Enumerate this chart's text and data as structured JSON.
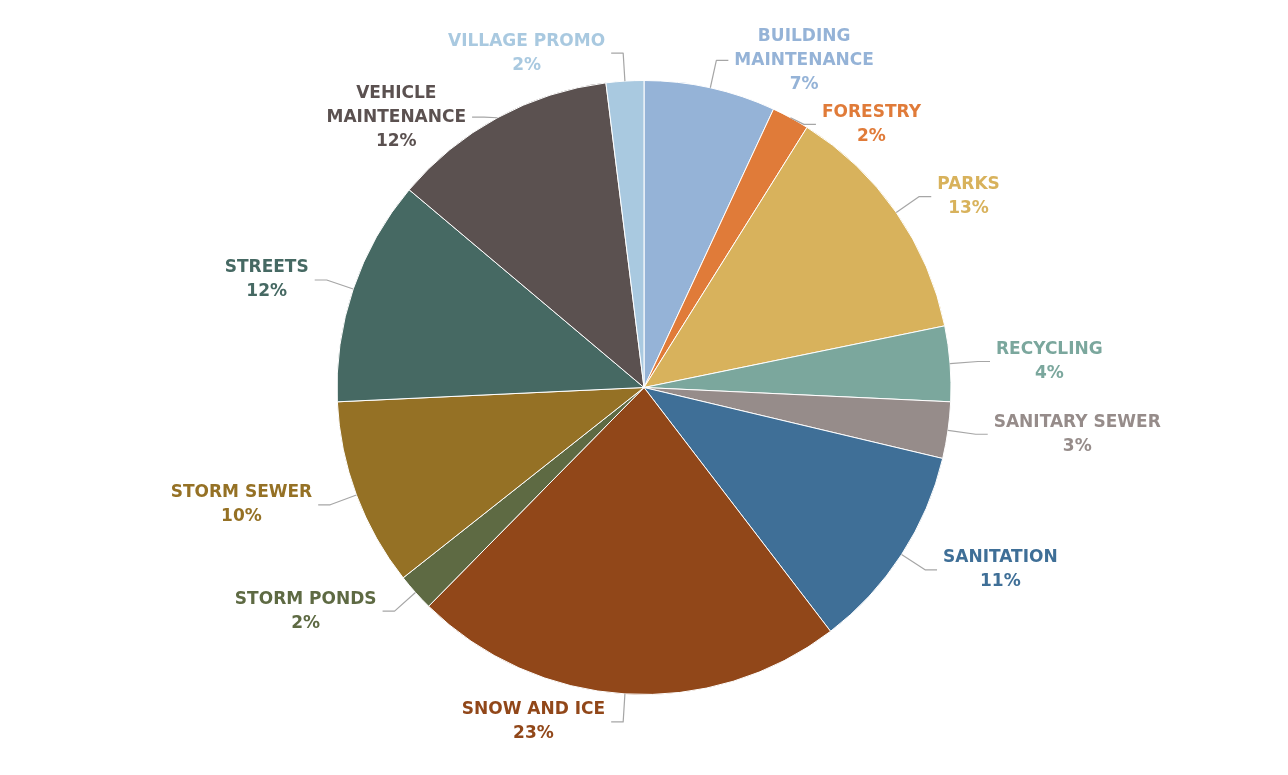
{
  "chart_data": {
    "type": "pie",
    "categories": [
      "BUILDING MAINTENANCE",
      "FORESTRY",
      "PARKS",
      "RECYCLING",
      "SANITARY SEWER",
      "SANITATION",
      "SNOW AND ICE",
      "STORM PONDS",
      "STORM SEWER",
      "STREETS",
      "VEHICLE MAINTENANCE",
      "VILLAGE PROMO"
    ],
    "values": [
      7,
      2,
      13,
      4,
      3,
      11,
      23,
      2,
      10,
      12,
      12,
      2
    ],
    "colors": [
      "#95b3d7",
      "#e07b39",
      "#d8b25c",
      "#7ba79d",
      "#968c8a",
      "#3f6f97",
      "#914719",
      "#5e6a43",
      "#957125",
      "#466963",
      "#5b5150",
      "#a9c9e0"
    ],
    "value_labels": [
      "7%",
      "2%",
      "13%",
      "4%",
      "3%",
      "11%",
      "23%",
      "2%",
      "10%",
      "12%",
      "12%",
      "2%"
    ],
    "legend": false
  }
}
